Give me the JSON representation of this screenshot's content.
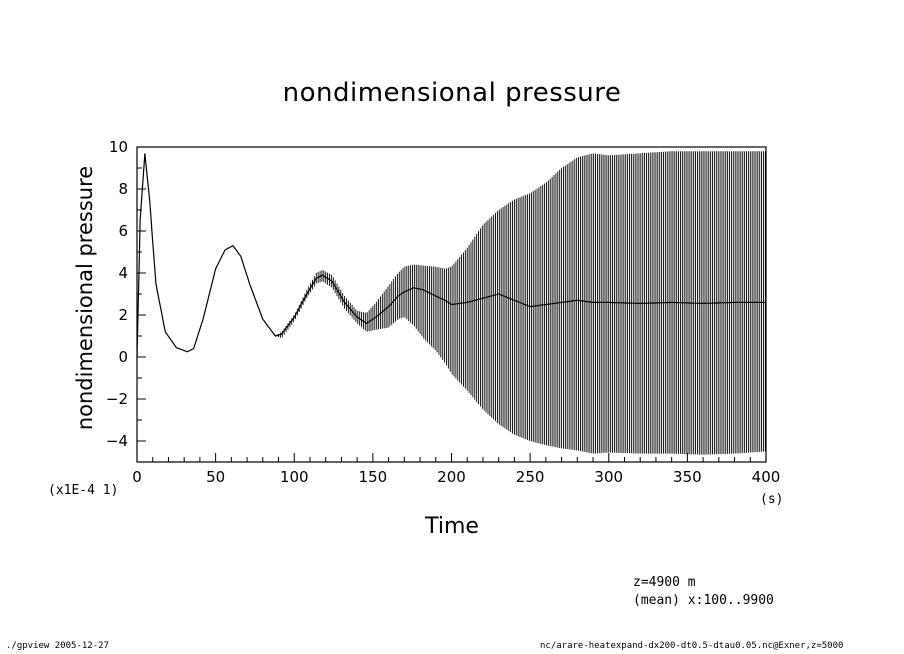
{
  "chart_data": {
    "type": "line",
    "title": "nondimensional pressure",
    "xlabel": "Time",
    "ylabel": "nondimensional pressure",
    "x_unit": "(s)",
    "y_scale_note": "(x1E-4 1)",
    "xlim": [
      0,
      400
    ],
    "ylim": [
      -5,
      10
    ],
    "x_ticks": [
      0,
      50,
      100,
      150,
      200,
      250,
      300,
      350,
      400
    ],
    "y_ticks": [
      -4,
      -2,
      0,
      2,
      4,
      6,
      8,
      10
    ],
    "grid": false,
    "series": [
      {
        "style": "rapid oscillation shown as dense vertical band; points give mean and band limits",
        "x": [
          0,
          2,
          5,
          8,
          12,
          18,
          25,
          32,
          36,
          42,
          50,
          56,
          61,
          66,
          72,
          80,
          88,
          92,
          100,
          108,
          114,
          118,
          124,
          132,
          140,
          146,
          152,
          160,
          166,
          170,
          176,
          182,
          190,
          196,
          200,
          210,
          220,
          230,
          240,
          250,
          260,
          270,
          280,
          290,
          300,
          320,
          340,
          360,
          380,
          400
        ],
        "mean": [
          0.0,
          6.5,
          9.7,
          7.5,
          3.5,
          1.2,
          0.45,
          0.25,
          0.4,
          1.8,
          4.2,
          5.1,
          5.3,
          4.8,
          3.4,
          1.8,
          1.0,
          1.1,
          1.9,
          3.0,
          3.75,
          3.9,
          3.6,
          2.6,
          1.9,
          1.6,
          1.9,
          2.4,
          2.9,
          3.1,
          3.3,
          3.2,
          2.9,
          2.7,
          2.5,
          2.6,
          2.8,
          3.0,
          2.7,
          2.4,
          2.5,
          2.6,
          2.7,
          2.6,
          2.6,
          2.55,
          2.6,
          2.55,
          2.6,
          2.6
        ],
        "upper": [
          0.0,
          6.5,
          9.7,
          7.5,
          3.5,
          1.2,
          0.45,
          0.25,
          0.4,
          1.8,
          4.2,
          5.1,
          5.3,
          4.8,
          3.4,
          1.8,
          1.0,
          1.2,
          2.0,
          3.2,
          4.0,
          4.15,
          3.9,
          2.9,
          2.2,
          2.1,
          2.6,
          3.4,
          4.0,
          4.3,
          4.4,
          4.35,
          4.3,
          4.2,
          4.3,
          5.2,
          6.3,
          7.0,
          7.5,
          7.8,
          8.3,
          9.0,
          9.5,
          9.7,
          9.6,
          9.7,
          9.8,
          9.8,
          9.8,
          9.8
        ],
        "lower": [
          0.0,
          6.5,
          9.7,
          7.5,
          3.5,
          1.2,
          0.45,
          0.25,
          0.4,
          1.8,
          4.2,
          5.1,
          5.3,
          4.8,
          3.4,
          1.8,
          1.0,
          0.9,
          1.7,
          2.8,
          3.5,
          3.6,
          3.3,
          2.3,
          1.6,
          1.2,
          1.3,
          1.4,
          1.8,
          1.9,
          1.5,
          0.9,
          0.3,
          -0.3,
          -0.8,
          -1.6,
          -2.5,
          -3.2,
          -3.7,
          -4.0,
          -4.2,
          -4.35,
          -4.45,
          -4.6,
          -4.55,
          -4.6,
          -4.6,
          -4.65,
          -4.6,
          -4.5
        ]
      }
    ]
  },
  "annotations": {
    "level": "z=4900  m",
    "mean": "(mean) x:100..9900"
  },
  "footer": {
    "left": "./gpview  2005-12-27",
    "right": "nc/arare-heatexpand-dx200-dt0.5-dtau0.05.nc@Exner,z=5000"
  }
}
